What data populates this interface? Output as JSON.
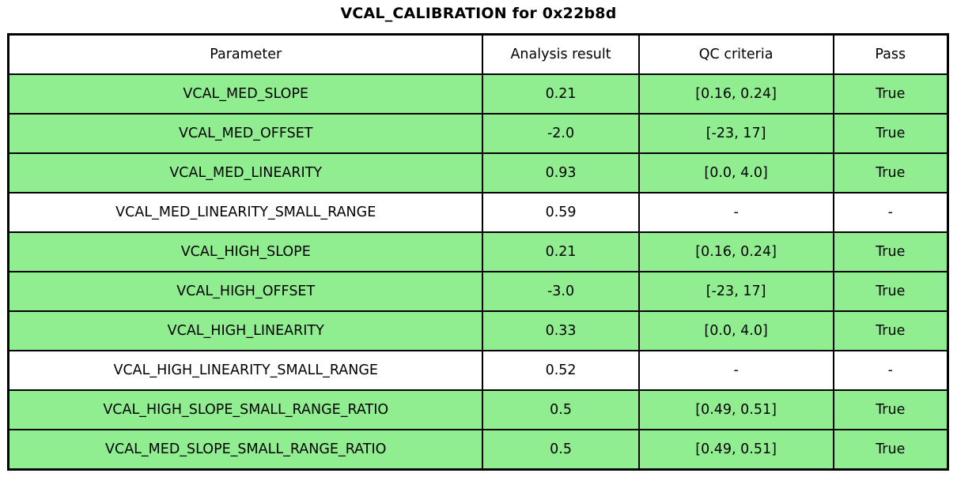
{
  "title": "VCAL_CALIBRATION for 0x22b8d",
  "colors": {
    "pass_row": "#90ee90",
    "neutral_row": "#ffffff",
    "border": "#000000",
    "text": "#000000"
  },
  "table": {
    "headers": [
      "Parameter",
      "Analysis result",
      "QC criteria",
      "Pass"
    ],
    "rows": [
      {
        "parameter": "VCAL_MED_SLOPE",
        "result": "0.21",
        "criteria": "[0.16, 0.24]",
        "pass": "True",
        "highlight": true
      },
      {
        "parameter": "VCAL_MED_OFFSET",
        "result": "-2.0",
        "criteria": "[-23, 17]",
        "pass": "True",
        "highlight": true
      },
      {
        "parameter": "VCAL_MED_LINEARITY",
        "result": "0.93",
        "criteria": "[0.0, 4.0]",
        "pass": "True",
        "highlight": true
      },
      {
        "parameter": "VCAL_MED_LINEARITY_SMALL_RANGE",
        "result": "0.59",
        "criteria": "-",
        "pass": "-",
        "highlight": false
      },
      {
        "parameter": "VCAL_HIGH_SLOPE",
        "result": "0.21",
        "criteria": "[0.16, 0.24]",
        "pass": "True",
        "highlight": true
      },
      {
        "parameter": "VCAL_HIGH_OFFSET",
        "result": "-3.0",
        "criteria": "[-23, 17]",
        "pass": "True",
        "highlight": true
      },
      {
        "parameter": "VCAL_HIGH_LINEARITY",
        "result": "0.33",
        "criteria": "[0.0, 4.0]",
        "pass": "True",
        "highlight": true
      },
      {
        "parameter": "VCAL_HIGH_LINEARITY_SMALL_RANGE",
        "result": "0.52",
        "criteria": "-",
        "pass": "-",
        "highlight": false
      },
      {
        "parameter": "VCAL_HIGH_SLOPE_SMALL_RANGE_RATIO",
        "result": "0.5",
        "criteria": "[0.49, 0.51]",
        "pass": "True",
        "highlight": true
      },
      {
        "parameter": "VCAL_MED_SLOPE_SMALL_RANGE_RATIO",
        "result": "0.5",
        "criteria": "[0.49, 0.51]",
        "pass": "True",
        "highlight": true
      }
    ]
  },
  "chart_data": {
    "type": "table",
    "title": "VCAL_CALIBRATION for 0x22b8d",
    "columns": [
      "Parameter",
      "Analysis result",
      "QC criteria",
      "Pass"
    ],
    "rows": [
      [
        "VCAL_MED_SLOPE",
        0.21,
        "[0.16, 0.24]",
        "True"
      ],
      [
        "VCAL_MED_OFFSET",
        -2.0,
        "[-23, 17]",
        "True"
      ],
      [
        "VCAL_MED_LINEARITY",
        0.93,
        "[0.0, 4.0]",
        "True"
      ],
      [
        "VCAL_MED_LINEARITY_SMALL_RANGE",
        0.59,
        "-",
        "-"
      ],
      [
        "VCAL_HIGH_SLOPE",
        0.21,
        "[0.16, 0.24]",
        "True"
      ],
      [
        "VCAL_HIGH_OFFSET",
        -3.0,
        "[-23, 17]",
        "True"
      ],
      [
        "VCAL_HIGH_LINEARITY",
        0.33,
        "[0.0, 4.0]",
        "True"
      ],
      [
        "VCAL_HIGH_LINEARITY_SMALL_RANGE",
        0.52,
        "-",
        "-"
      ],
      [
        "VCAL_HIGH_SLOPE_SMALL_RANGE_RATIO",
        0.5,
        "[0.49, 0.51]",
        "True"
      ],
      [
        "VCAL_MED_SLOPE_SMALL_RANGE_RATIO",
        0.5,
        "[0.49, 0.51]",
        "True"
      ]
    ],
    "layout_hints": {
      "highlight_color_passing_rows": "#90ee90",
      "neutral_rows_background": "#ffffff",
      "grid": "on",
      "legend_position": "none"
    }
  }
}
